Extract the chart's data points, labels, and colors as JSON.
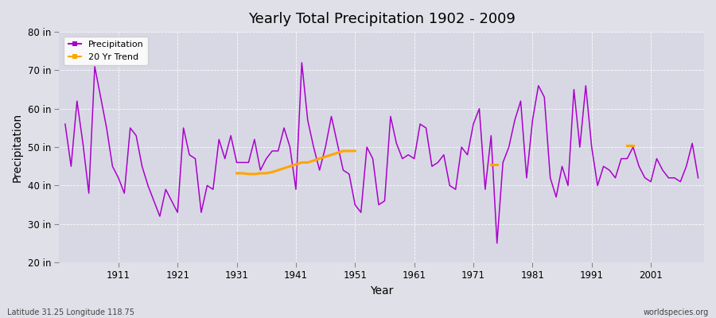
{
  "title": "Yearly Total Precipitation 1902 - 2009",
  "xlabel": "Year",
  "ylabel": "Precipitation",
  "bottom_left": "Latitude 31.25 Longitude 118.75",
  "bottom_right": "worldspecies.org",
  "ylim": [
    20,
    80
  ],
  "yticks": [
    20,
    30,
    40,
    50,
    60,
    70,
    80
  ],
  "ytick_labels": [
    "20 in",
    "30 in",
    "40 in",
    "50 in",
    "60 in",
    "70 in",
    "80 in"
  ],
  "start_year": 1902,
  "precip_color": "#AA00CC",
  "trend_color": "#FFA500",
  "bg_color": "#E0E0E8",
  "plot_bg_color": "#D8D8E4",
  "precipitation": [
    56,
    45,
    62,
    51,
    38,
    71,
    63,
    55,
    45,
    42,
    38,
    55,
    53,
    45,
    40,
    36,
    32,
    39,
    36,
    33,
    55,
    48,
    47,
    33,
    40,
    39,
    52,
    47,
    53,
    46,
    46,
    46,
    52,
    44,
    47,
    49,
    49,
    55,
    50,
    39,
    72,
    57,
    50,
    44,
    50,
    58,
    51,
    44,
    43,
    35,
    33,
    50,
    47,
    35,
    36,
    58,
    51,
    47,
    48,
    47,
    56,
    55,
    45,
    46,
    48,
    40,
    39,
    50,
    48,
    56,
    60,
    39,
    53,
    25,
    46,
    50,
    57,
    62,
    42,
    57,
    66,
    63,
    42,
    37,
    45,
    40,
    65,
    50,
    66,
    50,
    40,
    45,
    44,
    42,
    47,
    47,
    50,
    45,
    42,
    41,
    47,
    44,
    42,
    42,
    41,
    45,
    51,
    42
  ],
  "trend_segments": [
    {
      "years": [
        1931,
        1932,
        1933,
        1934,
        1935,
        1936,
        1937,
        1938,
        1939,
        1940,
        1941,
        1942,
        1943,
        1944,
        1945,
        1946,
        1947,
        1948,
        1949,
        1950,
        1951
      ],
      "values": [
        43.2,
        43.2,
        43.0,
        43.0,
        43.2,
        43.2,
        43.5,
        44.0,
        44.5,
        45.0,
        45.5,
        46.0,
        46.0,
        46.5,
        47.0,
        47.5,
        48.0,
        48.5,
        49.0,
        49.0,
        49.0
      ]
    },
    {
      "years": [
        1974,
        1975
      ],
      "values": [
        45.5,
        45.5
      ]
    },
    {
      "years": [
        1997,
        1998
      ],
      "values": [
        50.5,
        50.5
      ]
    }
  ],
  "xticks": [
    1911,
    1921,
    1931,
    1941,
    1951,
    1961,
    1971,
    1981,
    1991,
    2001
  ],
  "xlim": [
    1901,
    2010
  ]
}
